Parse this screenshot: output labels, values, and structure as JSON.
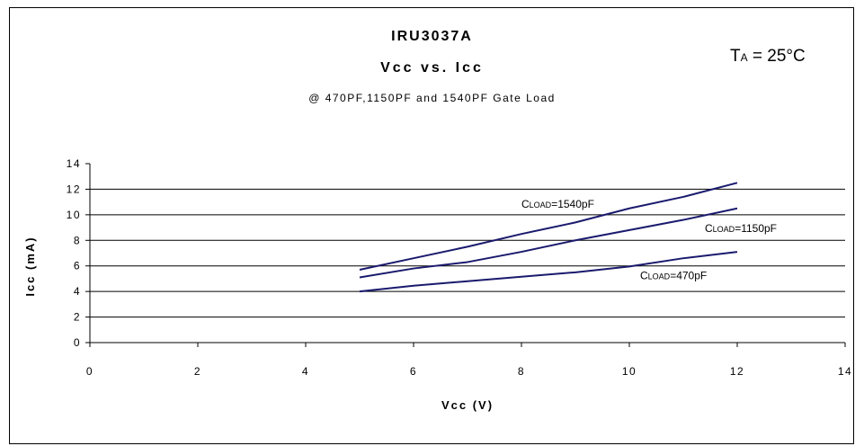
{
  "chart_data": {
    "type": "line",
    "title": "IRU3037A",
    "subtitle": "Vcc vs. Icc",
    "note": "@ 470PF,1150PF and 1540PF Gate Load",
    "annotation": {
      "prefix": "T",
      "sub": "A",
      "suffix": " = 25°C"
    },
    "xlabel": "Vcc (V)",
    "ylabel": "Icc (mA)",
    "xlim": [
      0,
      14
    ],
    "ylim": [
      0,
      14
    ],
    "xticks": [
      "0",
      "2",
      "4",
      "6",
      "8",
      "10",
      "12",
      "14"
    ],
    "yticks": [
      "0",
      "2",
      "4",
      "6",
      "8",
      "10",
      "12",
      "14"
    ],
    "grid": "horizontal",
    "legend": "inline",
    "series": [
      {
        "name": "CLOAD=1540pF",
        "label_prefix": "C",
        "label_sub": "LOAD",
        "label_suffix": "=1540pF",
        "x": [
          5,
          6,
          7,
          8,
          9,
          10,
          11,
          12
        ],
        "values": [
          5.7,
          6.6,
          7.5,
          8.5,
          9.4,
          10.5,
          11.4,
          12.5
        ]
      },
      {
        "name": "CLOAD=1150pF",
        "label_prefix": "C",
        "label_sub": "LOAD",
        "label_suffix": "=1150pF",
        "x": [
          5,
          6,
          7,
          8,
          9,
          10,
          11,
          12
        ],
        "values": [
          5.1,
          5.8,
          6.3,
          7.1,
          8.0,
          8.8,
          9.6,
          10.5
        ]
      },
      {
        "name": "CLOAD=470pF",
        "label_prefix": "C",
        "label_sub": "LOAD",
        "label_suffix": "=470pF",
        "x": [
          5,
          6,
          7,
          8,
          9,
          10,
          11,
          12
        ],
        "values": [
          4.0,
          4.45,
          4.8,
          5.15,
          5.5,
          5.95,
          6.6,
          7.1
        ]
      }
    ],
    "line_color": "#1a1a6e"
  }
}
